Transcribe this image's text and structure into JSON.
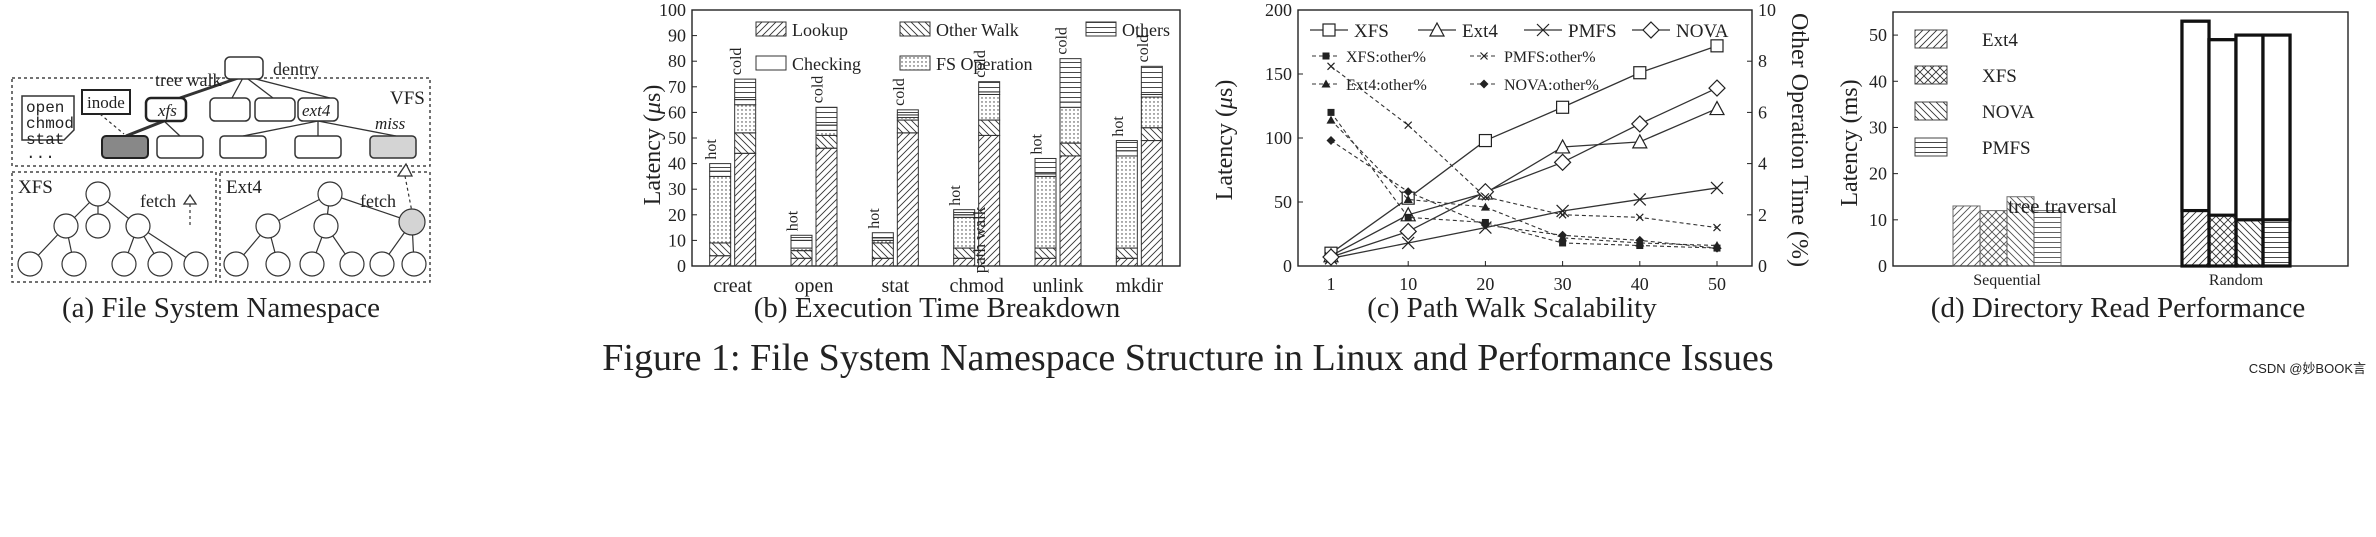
{
  "figure_caption": "Figure 1: File System Namespace Structure in Linux and Performance Issues",
  "watermark": "CSDN @妙BOOK言",
  "panel_a": {
    "caption": "(a) File System Namespace",
    "vfs_label": "VFS",
    "syscalls": [
      "open",
      "chmod",
      "stat",
      "..."
    ],
    "inode_label": "inode",
    "tree_walk_label": "tree walk",
    "dentry_label": "dentry",
    "xfs_node": "xfs",
    "ext4_node": "ext4",
    "miss_label": "miss",
    "xfs_label": "XFS",
    "ext4_label": "Ext4",
    "fetch_label": "fetch"
  },
  "panel_b": {
    "caption": "(b) Execution Time Breakdown",
    "legend": [
      "Lookup",
      "Other Walk",
      "Others",
      "Checking",
      "FS Operation"
    ],
    "hot_label": "hot",
    "cold_label": "cold",
    "path_walk_annotation": "path walk"
  },
  "panel_c": {
    "caption": "(c) Path Walk Scalability",
    "legend": [
      "XFS",
      "Ext4",
      "PMFS",
      "NOVA",
      "XFS:other%",
      "PMFS:other%",
      "Ext4:other%",
      "NOVA:other%"
    ]
  },
  "panel_d": {
    "caption": "(d) Directory Read Performance",
    "legend": [
      "Ext4",
      "XFS",
      "NOVA",
      "PMFS"
    ],
    "annotation": "tree traversal"
  },
  "chart_data": [
    {
      "type": "bar",
      "stacked": true,
      "categories": [
        "creat",
        "open",
        "stat",
        "chmod",
        "unlink",
        "mkdir"
      ],
      "ylabel": "Latency (μs)",
      "ylim": [
        0,
        100
      ],
      "yticks": [
        0,
        10,
        20,
        30,
        40,
        50,
        60,
        70,
        80,
        90,
        100
      ],
      "bars": [
        {
          "category": "creat",
          "label": "hot",
          "lookup": 4,
          "other_walk": 5,
          "fs_operation": 26,
          "checking": 2,
          "others": 3
        },
        {
          "category": "creat",
          "label": "cold",
          "lookup": 44,
          "other_walk": 8,
          "fs_operation": 11,
          "checking": 2,
          "others": 8
        },
        {
          "category": "open",
          "label": "hot",
          "lookup": 3,
          "other_walk": 3,
          "fs_operation": 1,
          "checking": 3,
          "others": 2
        },
        {
          "category": "open",
          "label": "cold",
          "lookup": 46,
          "other_walk": 5,
          "fs_operation": 2,
          "checking": 2,
          "others": 7
        },
        {
          "category": "stat",
          "label": "hot",
          "lookup": 3,
          "other_walk": 6,
          "fs_operation": 1,
          "checking": 1,
          "others": 2
        },
        {
          "category": "stat",
          "label": "cold",
          "lookup": 52,
          "other_walk": 5,
          "fs_operation": 1,
          "checking": 1,
          "others": 2
        },
        {
          "category": "chmod",
          "label": "hot",
          "lookup": 3,
          "other_walk": 4,
          "fs_operation": 12,
          "checking": 1,
          "others": 2
        },
        {
          "category": "chmod",
          "label": "cold",
          "lookup": 51,
          "other_walk": 6,
          "fs_operation": 10,
          "checking": 1,
          "others": 4
        },
        {
          "category": "unlink",
          "label": "hot",
          "lookup": 3,
          "other_walk": 4,
          "fs_operation": 28,
          "checking": 1,
          "others": 6
        },
        {
          "category": "unlink",
          "label": "cold",
          "lookup": 43,
          "other_walk": 5,
          "fs_operation": 14,
          "checking": 2,
          "others": 17
        },
        {
          "category": "mkdir",
          "label": "hot",
          "lookup": 3,
          "other_walk": 4,
          "fs_operation": 36,
          "checking": 2,
          "others": 4
        },
        {
          "category": "mkdir",
          "label": "cold",
          "lookup": 49,
          "other_walk": 5,
          "fs_operation": 12,
          "checking": 1,
          "others": 11
        }
      ]
    },
    {
      "type": "line",
      "xlabel": "",
      "ylabel": "Latency (μs)",
      "y2label": "Other Operation Time (%)",
      "x": [
        1,
        10,
        20,
        30,
        40,
        50
      ],
      "ylim": [
        0,
        200
      ],
      "y2lim": [
        0,
        10
      ],
      "yticks": [
        0,
        50,
        100,
        150,
        200
      ],
      "y2ticks": [
        0,
        2,
        4,
        6,
        8,
        10
      ],
      "series": [
        {
          "name": "XFS",
          "axis": "left",
          "marker": "square",
          "values": [
            10,
            53,
            98,
            124,
            151,
            172
          ]
        },
        {
          "name": "Ext4",
          "axis": "left",
          "marker": "triangle",
          "values": [
            8,
            40,
            57,
            93,
            97,
            123
          ]
        },
        {
          "name": "PMFS",
          "axis": "left",
          "marker": "x",
          "values": [
            6,
            18,
            30,
            43,
            52,
            61
          ]
        },
        {
          "name": "NOVA",
          "axis": "left",
          "marker": "diamond",
          "values": [
            7,
            27,
            58,
            81,
            111,
            139
          ]
        },
        {
          "name": "XFS:other%",
          "axis": "right",
          "marker": "filled-square",
          "values": [
            6.0,
            1.9,
            1.7,
            0.9,
            0.8,
            0.7
          ]
        },
        {
          "name": "PMFS:other%",
          "axis": "right",
          "marker": "small-x",
          "values": [
            7.8,
            5.5,
            2.7,
            2.0,
            1.9,
            1.5
          ]
        },
        {
          "name": "Ext4:other%",
          "axis": "right",
          "marker": "filled-triangle",
          "values": [
            5.7,
            2.6,
            2.3,
            1.1,
            0.9,
            0.8
          ]
        },
        {
          "name": "NOVA:other%",
          "axis": "right",
          "marker": "filled-diamond",
          "values": [
            4.9,
            2.9,
            1.6,
            1.2,
            1.0,
            0.7
          ]
        }
      ]
    },
    {
      "type": "bar",
      "categories": [
        "Sequential",
        "Random"
      ],
      "ylabel": "Latency (ms)",
      "ylim": [
        0,
        55
      ],
      "yticks": [
        0,
        10,
        20,
        30,
        40,
        50
      ],
      "series": [
        {
          "name": "Ext4",
          "values": [
            13,
            53
          ]
        },
        {
          "name": "XFS",
          "values": [
            12,
            49
          ]
        },
        {
          "name": "NOVA",
          "values": [
            15,
            50
          ]
        },
        {
          "name": "PMFS",
          "values": [
            12,
            50
          ]
        }
      ],
      "random_base_ms": [
        12,
        11,
        10,
        10
      ]
    }
  ]
}
